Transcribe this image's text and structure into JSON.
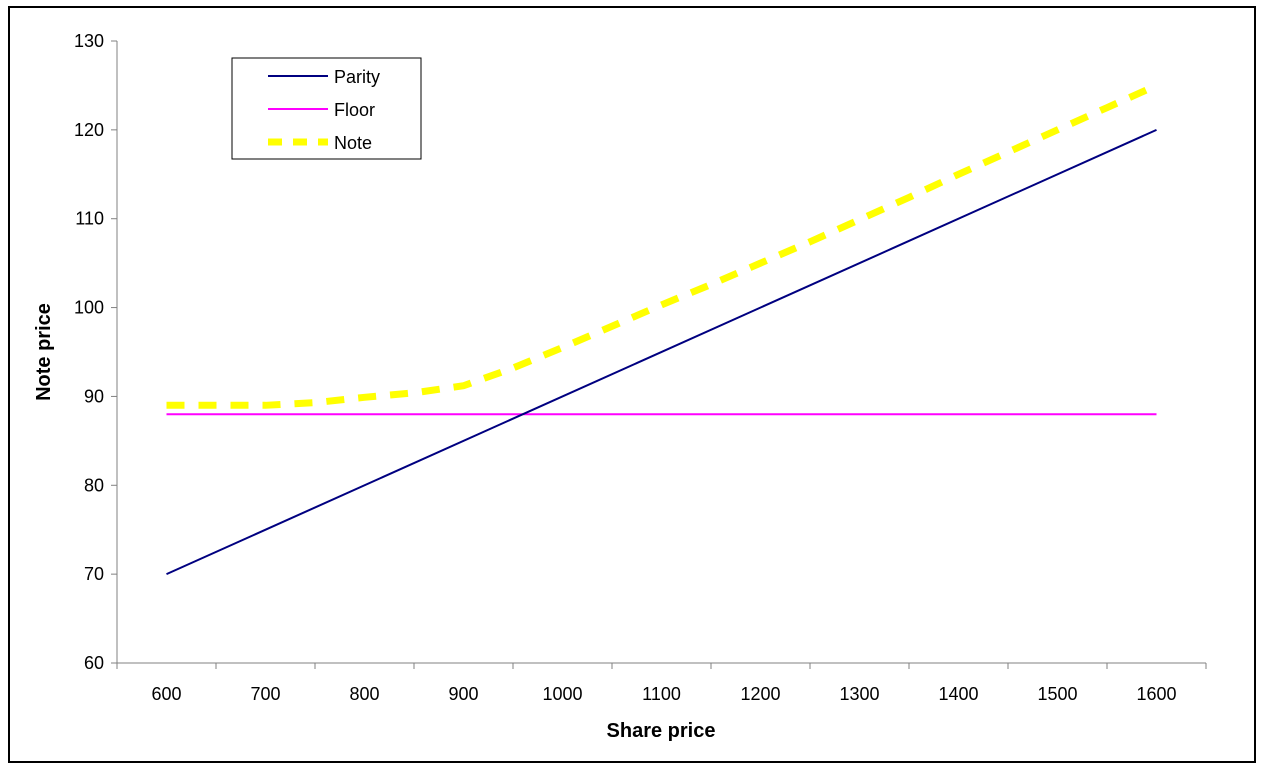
{
  "chart_data": {
    "type": "line",
    "xlabel": "Share price",
    "ylabel": "Note price",
    "xlim": [
      550,
      1650
    ],
    "ylim": [
      60,
      130
    ],
    "x_ticks": [
      600,
      700,
      800,
      900,
      1000,
      1100,
      1200,
      1300,
      1400,
      1500,
      1600
    ],
    "y_ticks": [
      60,
      70,
      80,
      90,
      100,
      110,
      120,
      130
    ],
    "grid": false,
    "legend_position": "top-left",
    "series": [
      {
        "name": "Parity",
        "color": "#000080",
        "style": "solid",
        "x": [
          600,
          1600
        ],
        "y": [
          70,
          120
        ]
      },
      {
        "name": "Floor",
        "color": "#FF00FF",
        "style": "solid",
        "x": [
          600,
          1600
        ],
        "y": [
          88,
          88
        ]
      },
      {
        "name": "Note",
        "color": "#FFFF00",
        "style": "dashed",
        "x": [
          600,
          650,
          700,
          750,
          800,
          850,
          900,
          950,
          1000,
          1050,
          1100,
          1150,
          1200,
          1250,
          1300,
          1350,
          1400,
          1450,
          1500,
          1550,
          1600
        ],
        "y": [
          89,
          89,
          89,
          89.3,
          89.9,
          90.4,
          91.2,
          93.2,
          95.5,
          97.9,
          100.3,
          102.6,
          105.0,
          107.4,
          109.9,
          112.4,
          115.0,
          117.5,
          120.0,
          122.5,
          125.0
        ]
      }
    ]
  }
}
